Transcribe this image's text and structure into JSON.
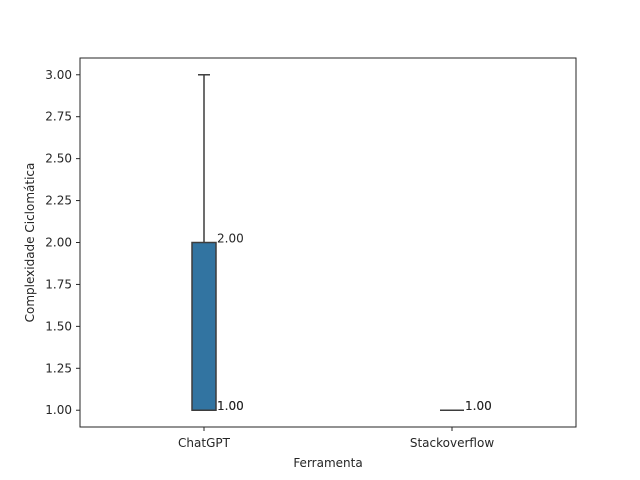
{
  "chart_data": {
    "type": "box",
    "title": "",
    "xlabel": "Ferramenta",
    "ylabel": "Complexidade Ciclomática",
    "ylim": [
      0.9,
      3.1
    ],
    "yticks": [
      "1.00",
      "1.25",
      "1.50",
      "1.75",
      "2.00",
      "2.25",
      "2.50",
      "2.75",
      "3.00"
    ],
    "categories": [
      "ChatGPT",
      "Stackoverflow"
    ],
    "boxes": [
      {
        "category": "ChatGPT",
        "whisker_low": 1.0,
        "q1": 1.0,
        "median": 1.0,
        "q3": 2.0,
        "whisker_high": 3.0
      },
      {
        "category": "Stackoverflow",
        "whisker_low": 1.0,
        "q1": 1.0,
        "median": 1.0,
        "q3": 1.0,
        "whisker_high": 1.0
      }
    ],
    "annotations": [
      {
        "category": "ChatGPT",
        "y": 2.0,
        "text": "2.00"
      },
      {
        "category": "ChatGPT",
        "y": 1.0,
        "text": "1.00"
      },
      {
        "category": "ChatGPT",
        "y": 1.0,
        "text": "1.00"
      },
      {
        "category": "Stackoverflow",
        "y": 1.0,
        "text": "1.00"
      },
      {
        "category": "Stackoverflow",
        "y": 1.0,
        "text": "1.00"
      }
    ],
    "grid": false,
    "colors": {
      "box_fill": "#3274a1",
      "box_edge": "#3d3d3d",
      "axis": "#262626"
    }
  }
}
